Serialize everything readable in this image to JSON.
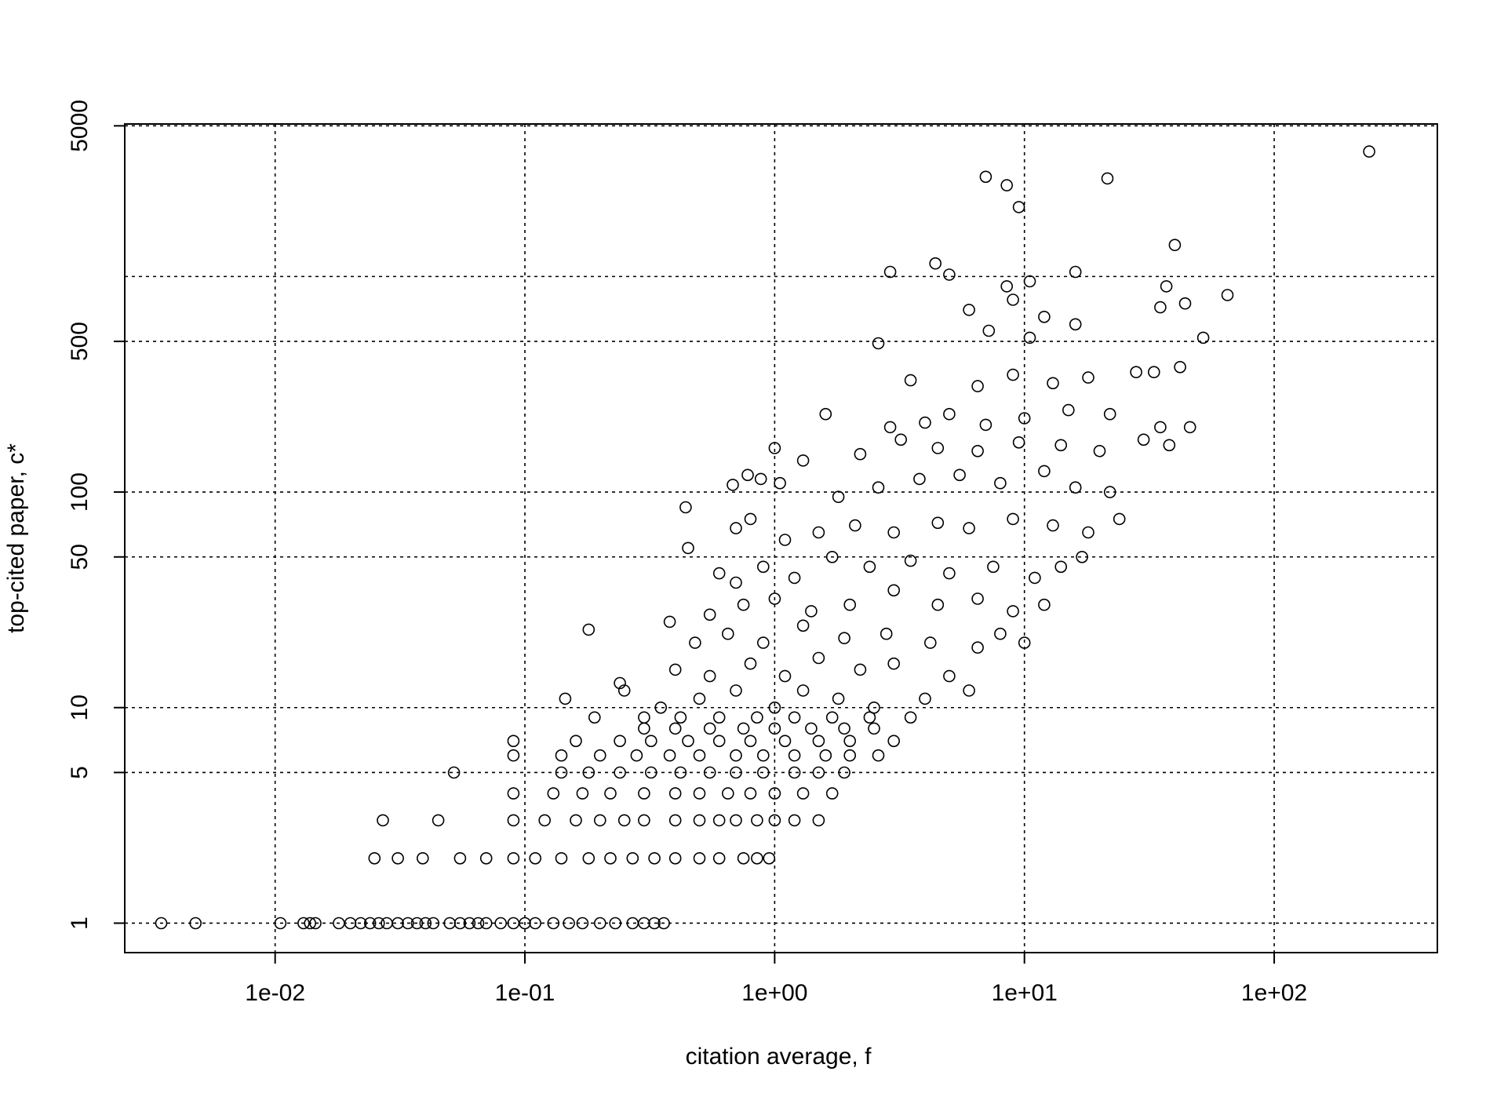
{
  "chart_data": {
    "type": "scatter",
    "title": "",
    "xlabel": "citation average, f",
    "ylabel": "top-cited paper,  c*",
    "x_scale": "log",
    "y_scale": "log",
    "xlim": [
      0.0025,
      450
    ],
    "ylim": [
      0.73,
      5100
    ],
    "x_ticks": [
      {
        "value": 0.01,
        "label": "1e-02"
      },
      {
        "value": 0.1,
        "label": "1e-01"
      },
      {
        "value": 1,
        "label": "1e+00"
      },
      {
        "value": 10,
        "label": "1e+01"
      },
      {
        "value": 100,
        "label": "1e+02"
      }
    ],
    "y_ticks": [
      {
        "value": 1,
        "label": "1"
      },
      {
        "value": 5,
        "label": "5"
      },
      {
        "value": 10,
        "label": "10"
      },
      {
        "value": 50,
        "label": "50"
      },
      {
        "value": 100,
        "label": "100"
      },
      {
        "value": 500,
        "label": "500"
      },
      {
        "value": 5000,
        "label": "5000"
      }
    ],
    "x_grid": [
      0.01,
      0.1,
      1,
      10,
      100
    ],
    "y_grid": [
      1,
      5,
      10,
      50,
      100,
      500,
      1000,
      5000
    ],
    "grid": true,
    "marker": "open-circle",
    "series": [
      {
        "points": [
          [
            0.0035,
            1
          ],
          [
            0.0048,
            1
          ],
          [
            0.0105,
            1
          ],
          [
            0.013,
            1
          ],
          [
            0.0138,
            1
          ],
          [
            0.0145,
            1
          ],
          [
            0.018,
            1
          ],
          [
            0.02,
            1
          ],
          [
            0.022,
            1
          ],
          [
            0.024,
            1
          ],
          [
            0.026,
            1
          ],
          [
            0.028,
            1
          ],
          [
            0.031,
            1
          ],
          [
            0.034,
            1
          ],
          [
            0.037,
            1
          ],
          [
            0.04,
            1
          ],
          [
            0.043,
            1
          ],
          [
            0.05,
            1
          ],
          [
            0.055,
            1
          ],
          [
            0.06,
            1
          ],
          [
            0.065,
            1
          ],
          [
            0.07,
            1
          ],
          [
            0.08,
            1
          ],
          [
            0.09,
            1
          ],
          [
            0.1,
            1
          ],
          [
            0.11,
            1
          ],
          [
            0.13,
            1
          ],
          [
            0.15,
            1
          ],
          [
            0.17,
            1
          ],
          [
            0.2,
            1
          ],
          [
            0.23,
            1
          ],
          [
            0.27,
            1
          ],
          [
            0.3,
            1
          ],
          [
            0.33,
            1
          ],
          [
            0.36,
            1
          ],
          [
            0.025,
            2
          ],
          [
            0.031,
            2
          ],
          [
            0.039,
            2
          ],
          [
            0.055,
            2
          ],
          [
            0.07,
            2
          ],
          [
            0.09,
            2
          ],
          [
            0.11,
            2
          ],
          [
            0.14,
            2
          ],
          [
            0.18,
            2
          ],
          [
            0.22,
            2
          ],
          [
            0.27,
            2
          ],
          [
            0.33,
            2
          ],
          [
            0.4,
            2
          ],
          [
            0.5,
            2
          ],
          [
            0.6,
            2
          ],
          [
            0.75,
            2
          ],
          [
            0.85,
            2
          ],
          [
            0.95,
            2
          ],
          [
            0.027,
            3
          ],
          [
            0.045,
            3
          ],
          [
            0.09,
            3
          ],
          [
            0.12,
            3
          ],
          [
            0.16,
            3
          ],
          [
            0.2,
            3
          ],
          [
            0.25,
            3
          ],
          [
            0.3,
            3
          ],
          [
            0.4,
            3
          ],
          [
            0.5,
            3
          ],
          [
            0.6,
            3
          ],
          [
            0.7,
            3
          ],
          [
            0.85,
            3
          ],
          [
            1.0,
            3
          ],
          [
            1.2,
            3
          ],
          [
            1.5,
            3
          ],
          [
            0.09,
            4
          ],
          [
            0.13,
            4
          ],
          [
            0.17,
            4
          ],
          [
            0.22,
            4
          ],
          [
            0.3,
            4
          ],
          [
            0.4,
            4
          ],
          [
            0.5,
            4
          ],
          [
            0.65,
            4
          ],
          [
            0.8,
            4
          ],
          [
            1.0,
            4
          ],
          [
            1.3,
            4
          ],
          [
            1.7,
            4
          ],
          [
            0.052,
            5
          ],
          [
            0.14,
            5
          ],
          [
            0.18,
            5
          ],
          [
            0.24,
            5
          ],
          [
            0.32,
            5
          ],
          [
            0.42,
            5
          ],
          [
            0.55,
            5
          ],
          [
            0.7,
            5
          ],
          [
            0.9,
            5
          ],
          [
            1.2,
            5
          ],
          [
            1.5,
            5
          ],
          [
            1.9,
            5
          ],
          [
            0.09,
            6
          ],
          [
            0.14,
            6
          ],
          [
            0.2,
            6
          ],
          [
            0.28,
            6
          ],
          [
            0.38,
            6
          ],
          [
            0.5,
            6
          ],
          [
            0.7,
            6
          ],
          [
            0.9,
            6
          ],
          [
            1.2,
            6
          ],
          [
            1.6,
            6
          ],
          [
            2.0,
            6
          ],
          [
            2.6,
            6
          ],
          [
            0.09,
            7
          ],
          [
            0.16,
            7
          ],
          [
            0.24,
            7
          ],
          [
            0.32,
            7
          ],
          [
            0.45,
            7
          ],
          [
            0.6,
            7
          ],
          [
            0.8,
            7
          ],
          [
            1.1,
            7
          ],
          [
            1.5,
            7
          ],
          [
            2.0,
            7
          ],
          [
            3.0,
            7
          ],
          [
            0.3,
            8
          ],
          [
            0.4,
            8
          ],
          [
            0.55,
            8
          ],
          [
            0.75,
            8
          ],
          [
            1.0,
            8
          ],
          [
            1.4,
            8
          ],
          [
            1.9,
            8
          ],
          [
            2.5,
            8
          ],
          [
            0.19,
            9
          ],
          [
            0.3,
            9
          ],
          [
            0.42,
            9
          ],
          [
            0.6,
            9
          ],
          [
            0.85,
            9
          ],
          [
            1.2,
            9
          ],
          [
            1.7,
            9
          ],
          [
            2.4,
            9
          ],
          [
            3.5,
            9
          ],
          [
            0.145,
            11
          ],
          [
            0.25,
            12
          ],
          [
            0.35,
            10
          ],
          [
            0.5,
            11
          ],
          [
            0.7,
            12
          ],
          [
            1.0,
            10
          ],
          [
            1.3,
            12
          ],
          [
            1.8,
            11
          ],
          [
            2.5,
            10
          ],
          [
            4.0,
            11
          ],
          [
            0.24,
            13
          ],
          [
            0.4,
            15
          ],
          [
            0.55,
            14
          ],
          [
            0.8,
            16
          ],
          [
            1.1,
            14
          ],
          [
            1.5,
            17
          ],
          [
            2.2,
            15
          ],
          [
            3.0,
            16
          ],
          [
            5.0,
            14
          ],
          [
            6.0,
            12
          ],
          [
            0.18,
            23
          ],
          [
            0.38,
            25
          ],
          [
            0.48,
            20
          ],
          [
            0.65,
            22
          ],
          [
            0.9,
            20
          ],
          [
            1.3,
            24
          ],
          [
            1.9,
            21
          ],
          [
            2.8,
            22
          ],
          [
            4.2,
            20
          ],
          [
            6.5,
            19
          ],
          [
            8.0,
            22
          ],
          [
            10.0,
            20
          ],
          [
            0.55,
            27
          ],
          [
            0.75,
            30
          ],
          [
            1.0,
            32
          ],
          [
            1.4,
            28
          ],
          [
            2.0,
            30
          ],
          [
            3.0,
            35
          ],
          [
            4.5,
            30
          ],
          [
            6.5,
            32
          ],
          [
            9.0,
            28
          ],
          [
            12.0,
            30
          ],
          [
            0.45,
            55
          ],
          [
            0.6,
            42
          ],
          [
            0.7,
            38
          ],
          [
            0.9,
            45
          ],
          [
            1.2,
            40
          ],
          [
            1.7,
            50
          ],
          [
            2.4,
            45
          ],
          [
            3.5,
            48
          ],
          [
            5.0,
            42
          ],
          [
            7.5,
            45
          ],
          [
            11.0,
            40
          ],
          [
            14.0,
            45
          ],
          [
            17.0,
            50
          ],
          [
            0.44,
            85
          ],
          [
            0.7,
            68
          ],
          [
            0.8,
            75
          ],
          [
            1.1,
            60
          ],
          [
            1.5,
            65
          ],
          [
            2.1,
            70
          ],
          [
            3.0,
            65
          ],
          [
            4.5,
            72
          ],
          [
            6.0,
            68
          ],
          [
            9.0,
            75
          ],
          [
            13.0,
            70
          ],
          [
            18.0,
            65
          ],
          [
            24.0,
            75
          ],
          [
            0.68,
            108
          ],
          [
            0.78,
            120
          ],
          [
            0.88,
            115
          ],
          [
            1.05,
            110
          ],
          [
            1.8,
            95
          ],
          [
            2.6,
            105
          ],
          [
            3.8,
            115
          ],
          [
            5.5,
            120
          ],
          [
            8.0,
            110
          ],
          [
            12.0,
            125
          ],
          [
            16.0,
            105
          ],
          [
            22.0,
            100
          ],
          [
            1.0,
            160
          ],
          [
            1.3,
            140
          ],
          [
            1.6,
            230
          ],
          [
            2.2,
            150
          ],
          [
            3.2,
            175
          ],
          [
            4.5,
            160
          ],
          [
            6.5,
            155
          ],
          [
            9.5,
            170
          ],
          [
            14.0,
            165
          ],
          [
            20.0,
            155
          ],
          [
            30.0,
            175
          ],
          [
            38.0,
            165
          ],
          [
            2.9,
            200
          ],
          [
            4.0,
            210
          ],
          [
            5.0,
            230
          ],
          [
            7.0,
            205
          ],
          [
            10.0,
            220
          ],
          [
            15.0,
            240
          ],
          [
            22.0,
            230
          ],
          [
            35.0,
            200
          ],
          [
            46.0,
            200
          ],
          [
            3.5,
            330
          ],
          [
            6.5,
            310
          ],
          [
            9.0,
            350
          ],
          [
            13.0,
            320
          ],
          [
            18.0,
            340
          ],
          [
            28.0,
            360
          ],
          [
            33.0,
            360
          ],
          [
            42.0,
            380
          ],
          [
            2.6,
            490
          ],
          [
            7.2,
            560
          ],
          [
            10.5,
            520
          ],
          [
            16.0,
            600
          ],
          [
            52.0,
            520
          ],
          [
            6.0,
            700
          ],
          [
            9.0,
            780
          ],
          [
            12.0,
            650
          ],
          [
            35.0,
            720
          ],
          [
            44.0,
            750
          ],
          [
            4.4,
            1150
          ],
          [
            5.0,
            1020
          ],
          [
            8.5,
            900
          ],
          [
            16.0,
            1050
          ],
          [
            37.0,
            900
          ],
          [
            65.0,
            820
          ],
          [
            2.9,
            1050
          ],
          [
            10.5,
            950
          ],
          [
            40.0,
            1400
          ],
          [
            9.5,
            2100
          ],
          [
            7.0,
            2900
          ],
          [
            8.5,
            2650
          ],
          [
            21.5,
            2850
          ],
          [
            240.0,
            3800
          ]
        ]
      }
    ]
  }
}
